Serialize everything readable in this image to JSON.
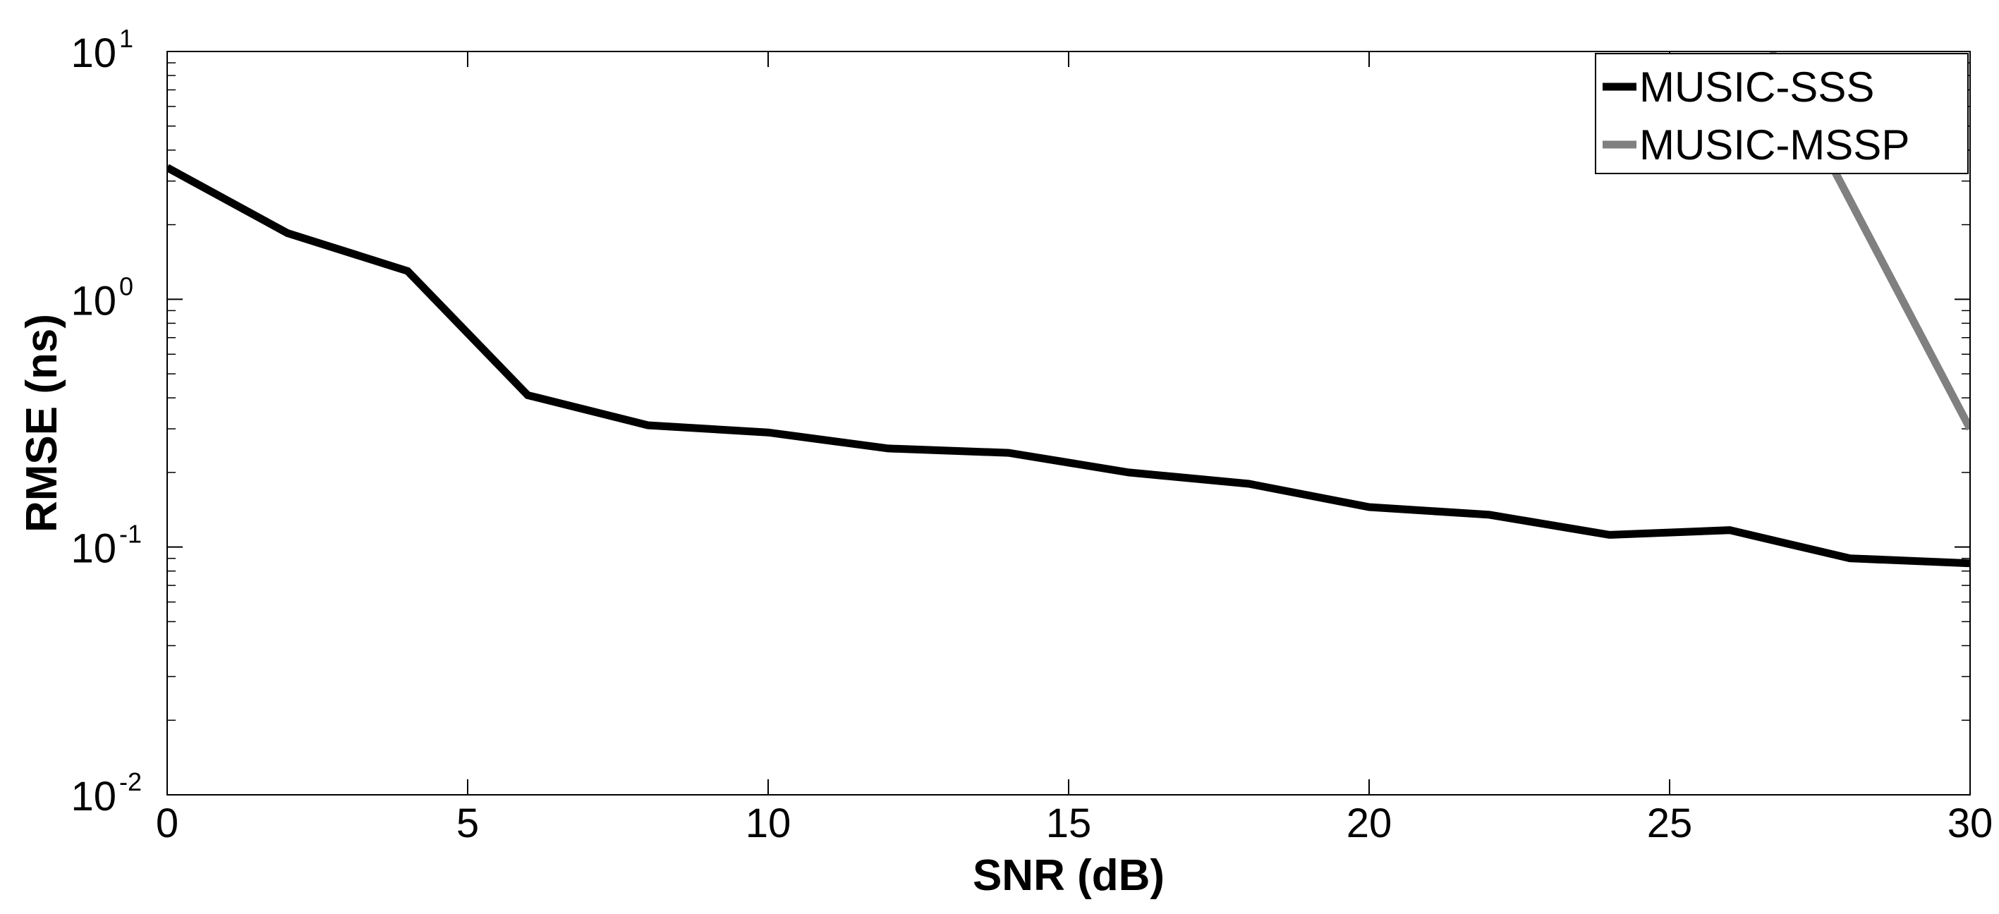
{
  "chart_data": {
    "type": "line",
    "title": "",
    "xlabel": "SNR (dB)",
    "ylabel": "RMSE (ns)",
    "xlim": [
      0,
      30
    ],
    "ylim": [
      0.01,
      10
    ],
    "yscale": "log",
    "grid": false,
    "legend_position": "top-right",
    "x_ticks": [
      0,
      5,
      10,
      15,
      20,
      25,
      30
    ],
    "x_tick_labels": [
      "0",
      "5",
      "10",
      "15",
      "20",
      "25",
      "30"
    ],
    "y_ticks": [
      0.01,
      0.1,
      1,
      10
    ],
    "y_tick_labels": [
      {
        "base": "10",
        "exp": "-2"
      },
      {
        "base": "10",
        "exp": "-1"
      },
      {
        "base": "10",
        "exp": "0"
      },
      {
        "base": "10",
        "exp": "1"
      }
    ],
    "series": [
      {
        "name": "MUSIC-SSS",
        "color": "#000000",
        "x": [
          0,
          2,
          4,
          6,
          8,
          10,
          12,
          14,
          16,
          18,
          20,
          22,
          24,
          26,
          28,
          30
        ],
        "y": [
          3.4,
          1.85,
          1.3,
          0.41,
          0.31,
          0.29,
          0.25,
          0.24,
          0.2,
          0.18,
          0.145,
          0.135,
          0.112,
          0.117,
          0.09,
          0.086
        ]
      },
      {
        "name": "MUSIC-MSSP",
        "color": "#808080",
        "x": [
          26.7,
          30
        ],
        "y": [
          10,
          0.3
        ]
      }
    ]
  }
}
